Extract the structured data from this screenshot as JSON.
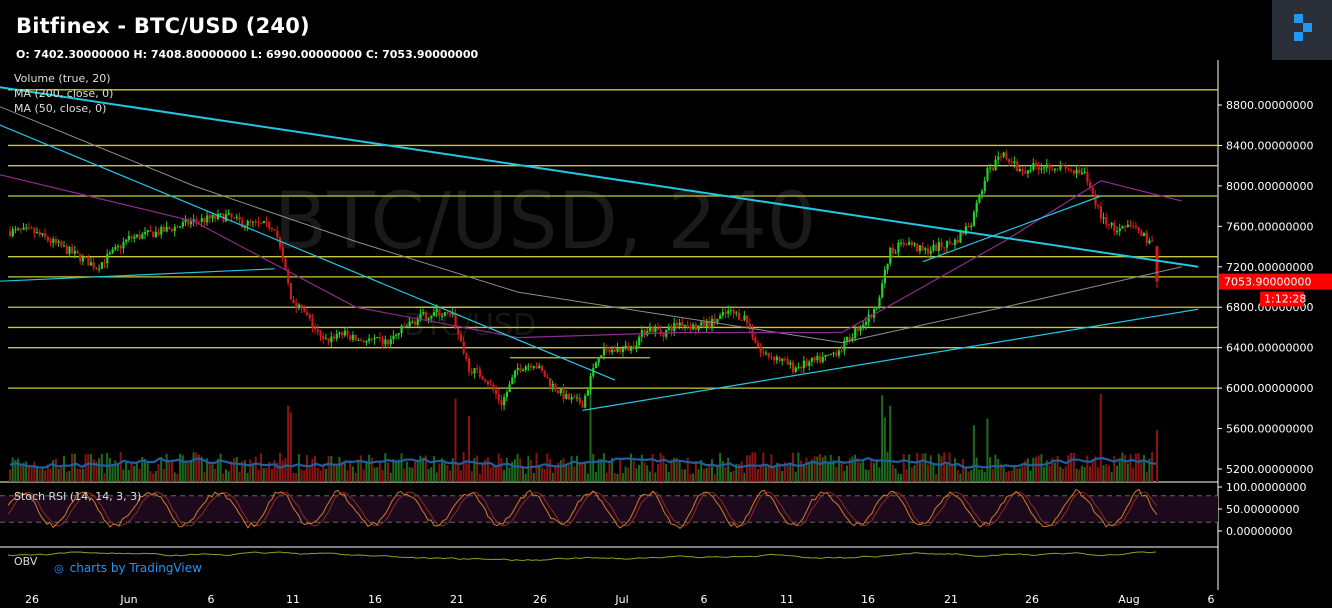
{
  "header": {
    "title": "Bitfinex - BTC/USD (240)",
    "ohlc": "O: 7402.30000000 H: 7408.80000000 L: 6990.00000000 C: 7053.90000000"
  },
  "indicators": {
    "volume": "Volume (true, 20)",
    "ma200": "MA (200, close, 0)",
    "ma50": "MA (50, close, 0)",
    "stoch": "Stoch RSI (14, 14, 3, 3)",
    "obv": "OBV"
  },
  "watermark": {
    "main": "BTC/USD, 240",
    "sub": "BTC/USD"
  },
  "branding": {
    "text": "charts by TradingView"
  },
  "colors": {
    "up": "#26d126",
    "down": "#d11b1b",
    "trendline": "#22c7e0",
    "level": "#c8c83a",
    "ma200": "#8c8c8c",
    "ma50": "#8e2b8e",
    "price_tag": "#ff0000"
  },
  "chart_data": {
    "type": "candlestick",
    "symbol": "BTC/USD",
    "exchange": "Bitfinex",
    "interval": "240",
    "y_ticks": [
      "8800.00000000",
      "8400.00000000",
      "8000.00000000",
      "7600.00000000",
      "7200.00000000",
      "6800.00000000",
      "6400.00000000",
      "6000.00000000",
      "5600.00000000",
      "5200.00000000"
    ],
    "stoch_ticks": [
      "100.00000000",
      "50.00000000",
      "0.00000000"
    ],
    "x_ticks": [
      "26",
      "Jun",
      "6",
      "11",
      "16",
      "21",
      "26",
      "Jul",
      "6",
      "11",
      "16",
      "21",
      "26",
      "Aug",
      "6"
    ],
    "ylim": [
      5080,
      9150
    ],
    "last_price": "7053.90000000",
    "countdown": "1:12:28",
    "close_path": [
      [
        "May 26",
        7550
      ],
      [
        "May 28",
        7380
      ],
      [
        "May 30",
        7200
      ],
      [
        "Jun 1",
        7480
      ],
      [
        "Jun 3",
        7550
      ],
      [
        "Jun 5",
        7650
      ],
      [
        "Jun 7",
        7700
      ],
      [
        "Jun 8",
        7630
      ],
      [
        "Jun 10",
        7600
      ],
      [
        "Jun 11",
        6900
      ],
      [
        "Jun 12",
        6700
      ],
      [
        "Jun 13",
        6450
      ],
      [
        "Jun 14",
        6550
      ],
      [
        "Jun 15",
        6480
      ],
      [
        "Jun 17",
        6450
      ],
      [
        "Jun 18",
        6600
      ],
      [
        "Jun 19",
        6700
      ],
      [
        "Jun 20",
        6750
      ],
      [
        "Jun 21",
        6700
      ],
      [
        "Jun 22",
        6200
      ],
      [
        "Jun 23",
        6100
      ],
      [
        "Jun 24",
        5850
      ],
      [
        "Jun 25",
        6200
      ],
      [
        "Jun 26",
        6250
      ],
      [
        "Jun 27",
        6050
      ],
      [
        "Jun 28",
        5900
      ],
      [
        "Jun 29",
        5850
      ],
      [
        "Jun 30",
        6350
      ],
      [
        "Jul 2",
        6400
      ],
      [
        "Jul 3",
        6600
      ],
      [
        "Jul 4",
        6550
      ],
      [
        "Jul 5",
        6650
      ],
      [
        "Jul 6",
        6600
      ],
      [
        "Jul 7",
        6650
      ],
      [
        "Jul 8",
        6750
      ],
      [
        "Jul 9",
        6700
      ],
      [
        "Jul 10",
        6350
      ],
      [
        "Jul 11",
        6300
      ],
      [
        "Jul 12",
        6200
      ],
      [
        "Jul 13",
        6250
      ],
      [
        "Jul 14",
        6300
      ],
      [
        "Jul 15",
        6400
      ],
      [
        "Jul 16",
        6600
      ],
      [
        "Jul 17",
        6750
      ],
      [
        "Jul 18",
        7350
      ],
      [
        "Jul 19",
        7450
      ],
      [
        "Jul 20",
        7350
      ],
      [
        "Jul 21",
        7400
      ],
      [
        "Jul 22",
        7450
      ],
      [
        "Jul 23",
        7650
      ],
      [
        "Jul 24",
        8150
      ],
      [
        "Jul 25",
        8300
      ],
      [
        "Jul 26",
        8150
      ],
      [
        "Jul 27",
        8200
      ],
      [
        "Jul 28",
        8200
      ],
      [
        "Jul 29",
        8150
      ],
      [
        "Jul 30",
        8100
      ],
      [
        "Jul 31",
        7700
      ],
      [
        "Aug 1",
        7550
      ],
      [
        "Aug 2",
        7600
      ],
      [
        "Aug 3",
        7450
      ],
      [
        "Aug 4",
        7400
      ],
      [
        "Aug 5",
        7054
      ]
    ],
    "horizontal_levels": [
      8950,
      8400,
      8200,
      7900,
      7300,
      7100,
      6800,
      6600,
      6400,
      6000
    ],
    "trendlines": [
      {
        "from": [
          "May 23",
          9000
        ],
        "to": [
          "Aug 6",
          7200
        ]
      },
      {
        "from": [
          "May 23",
          8670
        ],
        "to": [
          "Jul 1",
          6080
        ]
      },
      {
        "from": [
          "May 23",
          7050
        ],
        "to": [
          "Jun 10",
          7180
        ]
      },
      {
        "from": [
          "Jun 29",
          5780
        ],
        "to": [
          "Aug 6",
          6780
        ]
      },
      {
        "from": [
          "Jul 20",
          7250
        ],
        "to": [
          "Jul 31",
          7900
        ]
      }
    ],
    "ma200_path": [
      [
        "May 23",
        8850
      ],
      [
        "Jun 5",
        8000
      ],
      [
        "Jun 15",
        7450
      ],
      [
        "Jun 25",
        6950
      ],
      [
        "Jul 5",
        6700
      ],
      [
        "Jul 15",
        6450
      ],
      [
        "Jul 25",
        6800
      ],
      [
        "Aug 5",
        7200
      ]
    ],
    "ma50_path": [
      [
        "May 23",
        8150
      ],
      [
        "Jun 5",
        7650
      ],
      [
        "Jun 15",
        6800
      ],
      [
        "Jun 25",
        6500
      ],
      [
        "Jul 5",
        6550
      ],
      [
        "Jul 15",
        6550
      ],
      [
        "Jul 25",
        7450
      ],
      [
        "Jul 31",
        8050
      ],
      [
        "Aug 5",
        7850
      ]
    ]
  }
}
